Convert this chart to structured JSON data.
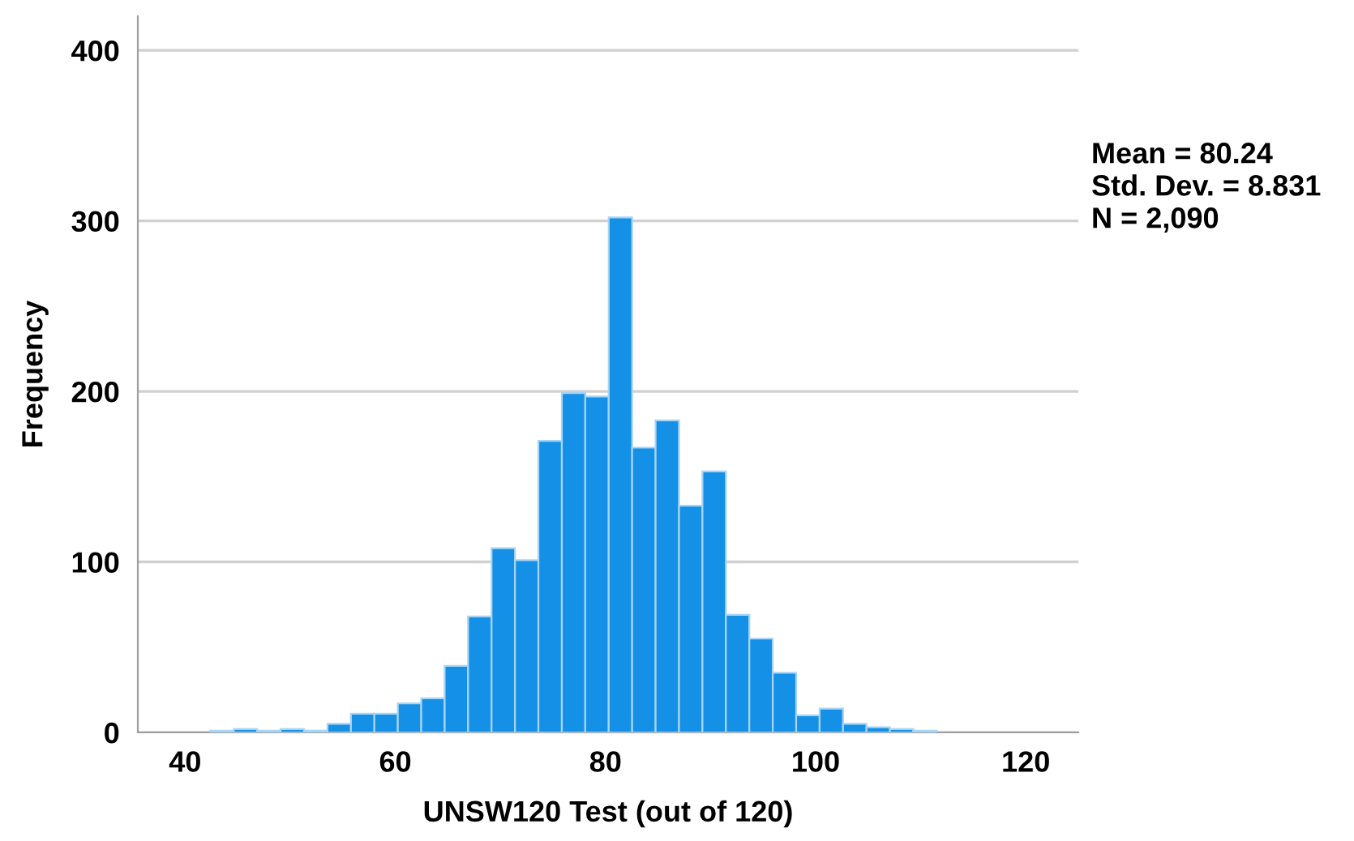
{
  "chart_data": {
    "type": "histogram",
    "xlabel": "UNSW120 Test (out of 120)",
    "ylabel": "Frequency",
    "bins": [
      42.4,
      44.63,
      46.86,
      49.09,
      51.32,
      53.55,
      55.78,
      58.01,
      60.24,
      62.47,
      64.7,
      66.93,
      69.16,
      71.39,
      73.62,
      75.85,
      78.08,
      80.31,
      82.54,
      84.77,
      87.0,
      89.23,
      91.46,
      93.69,
      95.92,
      98.15,
      100.38,
      102.61,
      104.84,
      107.07,
      109.3,
      111.53
    ],
    "values": [
      1,
      2,
      1,
      2,
      1,
      5,
      11,
      11,
      17,
      20,
      39,
      68,
      108,
      101,
      171,
      199,
      197,
      302,
      167,
      183,
      133,
      153,
      69,
      55,
      35,
      10,
      14,
      5,
      3,
      2,
      1
    ],
    "color": "#1490e6",
    "xlim": [
      35.5,
      125
    ],
    "xticks": [
      40,
      60,
      80,
      100,
      120
    ],
    "ylim": [
      0,
      420
    ],
    "yticks": [
      0,
      100,
      200,
      300,
      400
    ],
    "grid": "y",
    "annotations": [
      "Mean = 80.24",
      "Std. Dev. = 8.831",
      "N = 2,090"
    ]
  }
}
